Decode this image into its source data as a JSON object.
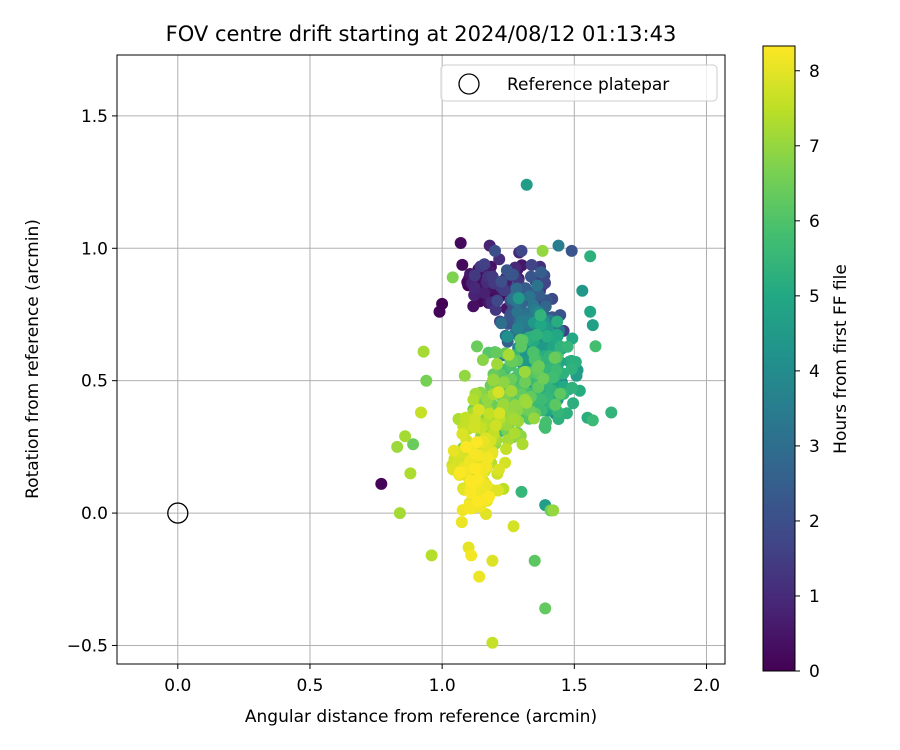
{
  "chart_data": {
    "type": "scatter",
    "title": "FOV centre drift starting at 2024/08/12 01:13:43",
    "xlabel": "Angular distance from reference (arcmin)",
    "ylabel": "Rotation from reference (arcmin)",
    "xlim": [
      -0.23,
      2.07
    ],
    "ylim": [
      -0.57,
      1.73
    ],
    "xticks": [
      0.0,
      0.5,
      1.0,
      1.5,
      2.0
    ],
    "xtick_labels": [
      "0.0",
      "0.5",
      "1.0",
      "1.5",
      "2.0"
    ],
    "yticks": [
      -0.5,
      0.0,
      0.5,
      1.0,
      1.5
    ],
    "ytick_labels": [
      "−0.5",
      "0.0",
      "0.5",
      "1.0",
      "1.5"
    ],
    "grid": true,
    "legend": {
      "position": "top-right",
      "entries": [
        {
          "label": "Reference platepar",
          "marker": "open-circle",
          "x": 0.0,
          "y": 0.0
        }
      ]
    },
    "colorbar": {
      "label": "Hours from first FF file",
      "colormap": "viridis",
      "range": [
        0,
        8.33
      ],
      "ticks": [
        0,
        1,
        2,
        3,
        4,
        5,
        6,
        7,
        8
      ],
      "tick_labels": [
        "0",
        "1",
        "2",
        "3",
        "4",
        "5",
        "6",
        "7",
        "8"
      ]
    },
    "reference_point": {
      "x": 0.0,
      "y": 0.0
    },
    "clusters": [
      {
        "hours": [
          0.0,
          0.5
        ],
        "x_range": [
          1.0,
          1.3
        ],
        "y_range": [
          0.72,
          1.0
        ],
        "count": 30
      },
      {
        "hours": [
          0.5,
          1.5
        ],
        "x_range": [
          1.05,
          1.45
        ],
        "y_range": [
          0.7,
          1.0
        ],
        "count": 45
      },
      {
        "hours": [
          1.5,
          2.5
        ],
        "x_range": [
          1.15,
          1.5
        ],
        "y_range": [
          0.62,
          0.95
        ],
        "count": 70
      },
      {
        "hours": [
          2.5,
          3.5
        ],
        "x_range": [
          1.2,
          1.5
        ],
        "y_range": [
          0.45,
          0.9
        ],
        "count": 80
      },
      {
        "hours": [
          3.5,
          4.5
        ],
        "x_range": [
          1.22,
          1.5
        ],
        "y_range": [
          0.3,
          0.85
        ],
        "count": 90
      },
      {
        "hours": [
          4.5,
          5.5
        ],
        "x_range": [
          1.25,
          1.55
        ],
        "y_range": [
          0.25,
          0.8
        ],
        "count": 90
      },
      {
        "hours": [
          5.5,
          6.5
        ],
        "x_range": [
          1.1,
          1.5
        ],
        "y_range": [
          0.2,
          0.75
        ],
        "count": 90
      },
      {
        "hours": [
          6.5,
          7.3
        ],
        "x_range": [
          1.0,
          1.4
        ],
        "y_range": [
          0.1,
          0.65
        ],
        "count": 80
      },
      {
        "hours": [
          7.3,
          7.9
        ],
        "x_range": [
          1.0,
          1.3
        ],
        "y_range": [
          0.0,
          0.5
        ],
        "count": 70
      },
      {
        "hours": [
          7.9,
          8.33
        ],
        "x_range": [
          1.0,
          1.25
        ],
        "y_range": [
          -0.1,
          0.35
        ],
        "count": 60
      }
    ],
    "points": [
      {
        "x": 0.77,
        "y": 0.11,
        "h": 0.1
      },
      {
        "x": 1.32,
        "y": 1.24,
        "h": 4.6
      },
      {
        "x": 1.07,
        "y": 1.02,
        "h": 0.2
      },
      {
        "x": 1.18,
        "y": 1.01,
        "h": 0.8
      },
      {
        "x": 1.2,
        "y": 0.99,
        "h": 2.0
      },
      {
        "x": 1.3,
        "y": 0.99,
        "h": 1.8
      },
      {
        "x": 1.44,
        "y": 1.01,
        "h": 3.5
      },
      {
        "x": 1.49,
        "y": 0.99,
        "h": 2.2
      },
      {
        "x": 1.56,
        "y": 0.97,
        "h": 5.3
      },
      {
        "x": 1.38,
        "y": 0.99,
        "h": 7.0
      },
      {
        "x": 1.04,
        "y": 0.89,
        "h": 6.7
      },
      {
        "x": 1.0,
        "y": 0.79,
        "h": 0.0
      },
      {
        "x": 0.99,
        "y": 0.76,
        "h": 0.1
      },
      {
        "x": 1.53,
        "y": 0.84,
        "h": 4.4
      },
      {
        "x": 1.56,
        "y": 0.76,
        "h": 4.9
      },
      {
        "x": 1.57,
        "y": 0.71,
        "h": 4.7
      },
      {
        "x": 1.58,
        "y": 0.63,
        "h": 5.8
      },
      {
        "x": 1.64,
        "y": 0.38,
        "h": 5.4
      },
      {
        "x": 1.55,
        "y": 0.36,
        "h": 5.2
      },
      {
        "x": 1.57,
        "y": 0.35,
        "h": 5.6
      },
      {
        "x": 0.93,
        "y": 0.61,
        "h": 7.2
      },
      {
        "x": 0.94,
        "y": 0.5,
        "h": 6.6
      },
      {
        "x": 0.92,
        "y": 0.38,
        "h": 7.6
      },
      {
        "x": 0.83,
        "y": 0.25,
        "h": 7.1
      },
      {
        "x": 0.86,
        "y": 0.29,
        "h": 7.2
      },
      {
        "x": 0.89,
        "y": 0.26,
        "h": 6.4
      },
      {
        "x": 0.88,
        "y": 0.15,
        "h": 7.3
      },
      {
        "x": 0.84,
        "y": 0.0,
        "h": 7.2
      },
      {
        "x": 0.96,
        "y": -0.16,
        "h": 7.4
      },
      {
        "x": 1.1,
        "y": -0.13,
        "h": 8.0
      },
      {
        "x": 1.11,
        "y": -0.16,
        "h": 8.2
      },
      {
        "x": 1.14,
        "y": -0.24,
        "h": 8.1
      },
      {
        "x": 1.19,
        "y": -0.18,
        "h": 7.9
      },
      {
        "x": 1.35,
        "y": -0.18,
        "h": 6.2
      },
      {
        "x": 1.39,
        "y": -0.36,
        "h": 6.3
      },
      {
        "x": 1.19,
        "y": -0.49,
        "h": 7.6
      },
      {
        "x": 1.27,
        "y": -0.05,
        "h": 7.8
      },
      {
        "x": 1.3,
        "y": 0.08,
        "h": 5.5
      },
      {
        "x": 1.39,
        "y": 0.03,
        "h": 4.6
      },
      {
        "x": 1.41,
        "y": 0.01,
        "h": 6.4
      },
      {
        "x": 1.42,
        "y": 0.01,
        "h": 7.0
      },
      {
        "x": 1.16,
        "y": 0.94,
        "h": 1.6
      },
      {
        "x": 1.26,
        "y": 0.9,
        "h": 2.2
      },
      {
        "x": 1.37,
        "y": 0.93,
        "h": 1.1
      }
    ]
  }
}
